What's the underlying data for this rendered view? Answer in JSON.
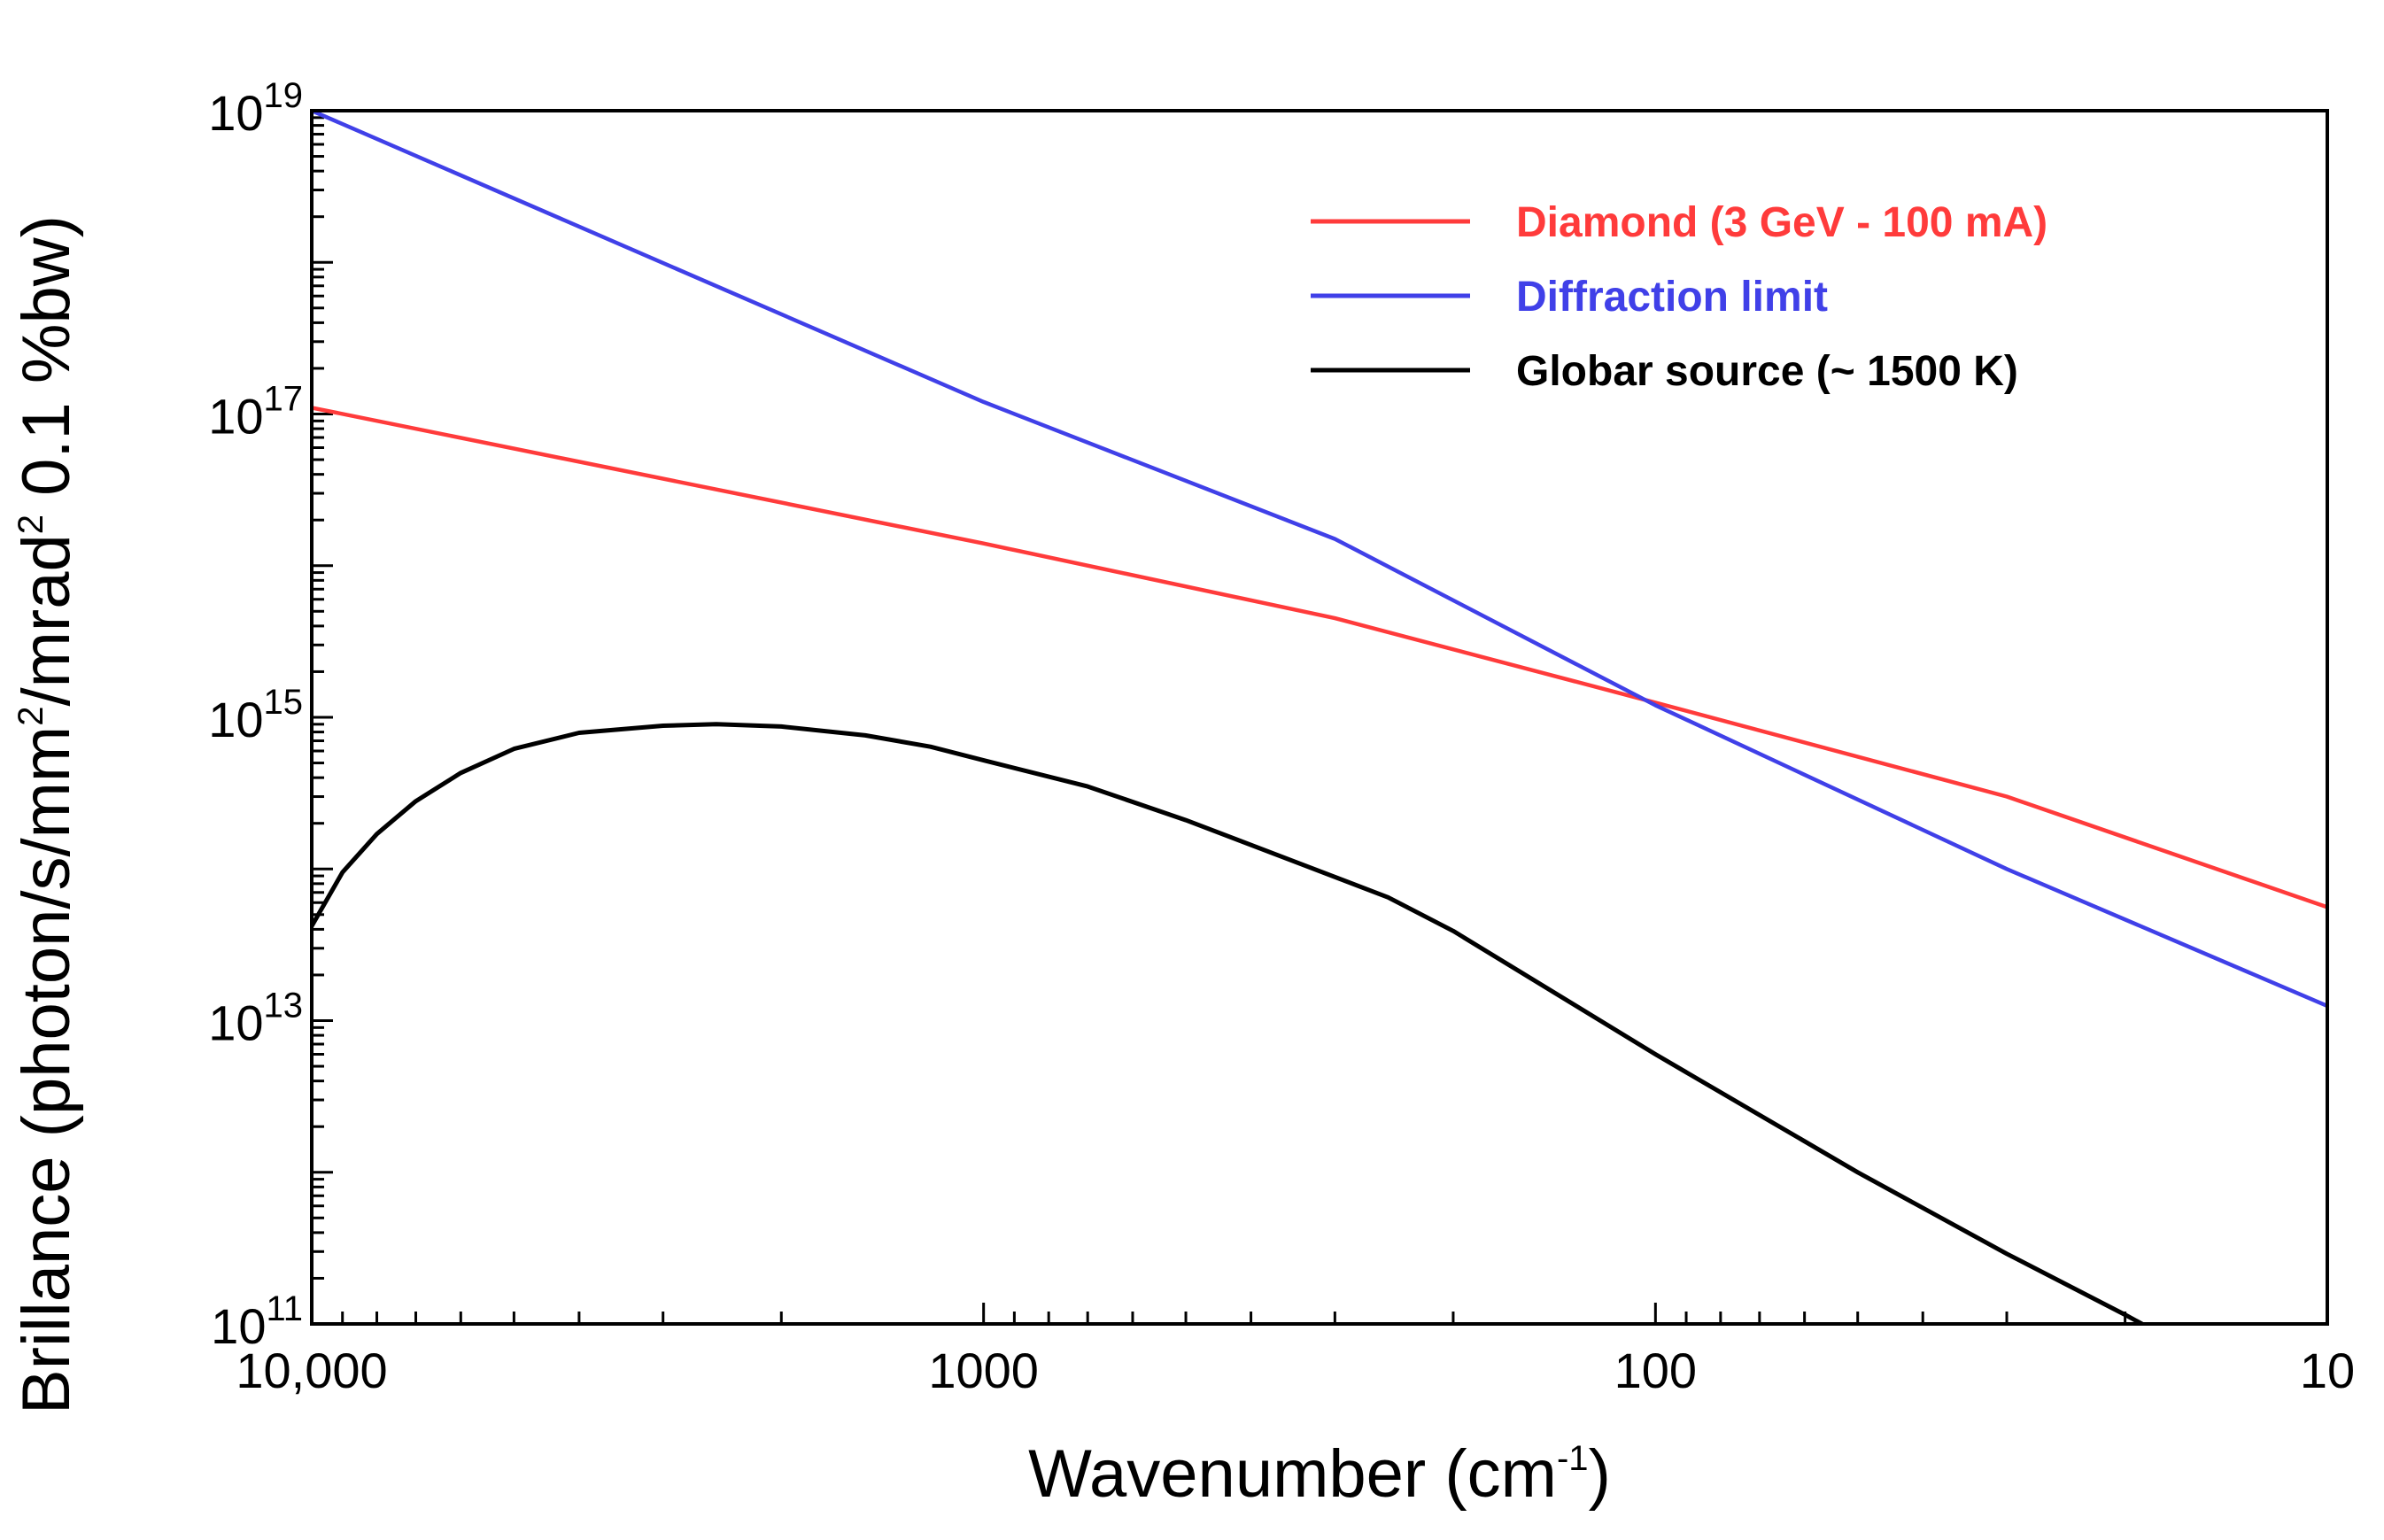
{
  "chart_data": {
    "type": "line",
    "xlabel": {
      "base": "Wavenumber (cm",
      "sup": "-1",
      "tail": ")"
    },
    "ylabel": {
      "p1": "Brillance (photon/s/mm",
      "sup1": "2",
      "p2": "/mrad",
      "sup2": "2",
      "p3": " 0.1 %bw)"
    },
    "x_scale": "log",
    "x_reversed": true,
    "xlim": [
      10000,
      10
    ],
    "y_scale": "log",
    "ylim": [
      100000000000.0,
      1e+19
    ],
    "grid": false,
    "legend_position": "top-right",
    "x_ticks": [
      {
        "value": 10000,
        "label": "10,000"
      },
      {
        "value": 1000,
        "label": "1000"
      },
      {
        "value": 100,
        "label": "100"
      },
      {
        "value": 10,
        "label": "10"
      }
    ],
    "y_ticks": [
      {
        "value": 100000000000.0,
        "base": "10",
        "exp": "11"
      },
      {
        "value": 10000000000000.0,
        "base": "10",
        "exp": "13"
      },
      {
        "value": 1000000000000000.0,
        "base": "10",
        "exp": "15"
      },
      {
        "value": 1e+17,
        "base": "10",
        "exp": "17"
      },
      {
        "value": 1e+19,
        "base": "10",
        "exp": "19"
      }
    ],
    "series": [
      {
        "name": "Diamond (3 GeV - 100 mA)",
        "color": "#ff3b3b",
        "x": [
          10000,
          1000,
          300,
          100,
          30,
          10
        ],
        "y": [
          1.1e+17,
          1.4e+16,
          4500000000000000.0,
          1250000000000000.0,
          300000000000000.0,
          56000000000000.0
        ]
      },
      {
        "name": "Diffraction limit",
        "color": "#4040e8",
        "x": [
          10000,
          1000,
          300,
          100,
          30,
          10
        ],
        "y": [
          1e+19,
          1.2e+17,
          1.5e+16,
          1200000000000000.0,
          100000000000000.0,
          12500000000000.0
        ]
      },
      {
        "name": "Globar source (~ 1500 K)",
        "color": "#000000",
        "x": [
          10000,
          9000,
          8000,
          7000,
          6000,
          5000,
          4000,
          3000,
          2500,
          2000,
          1500,
          1200,
          1000,
          700,
          500,
          350,
          250,
          200,
          100,
          50,
          30,
          20,
          12.5
        ],
        "y": [
          42000000000000.0,
          95000000000000.0,
          170000000000000.0,
          280000000000000.0,
          430000000000000.0,
          620000000000000.0,
          790000000000000.0,
          880000000000000.0,
          900000000000000.0,
          870000000000000.0,
          760000000000000.0,
          640000000000000.0,
          520000000000000.0,
          350000000000000.0,
          210000000000000.0,
          115000000000000.0,
          65000000000000.0,
          39000000000000.0,
          6000000000000.0,
          1000000000000.0,
          290000000000.0,
          115000000000.0,
          37000000000.0
        ]
      }
    ]
  }
}
